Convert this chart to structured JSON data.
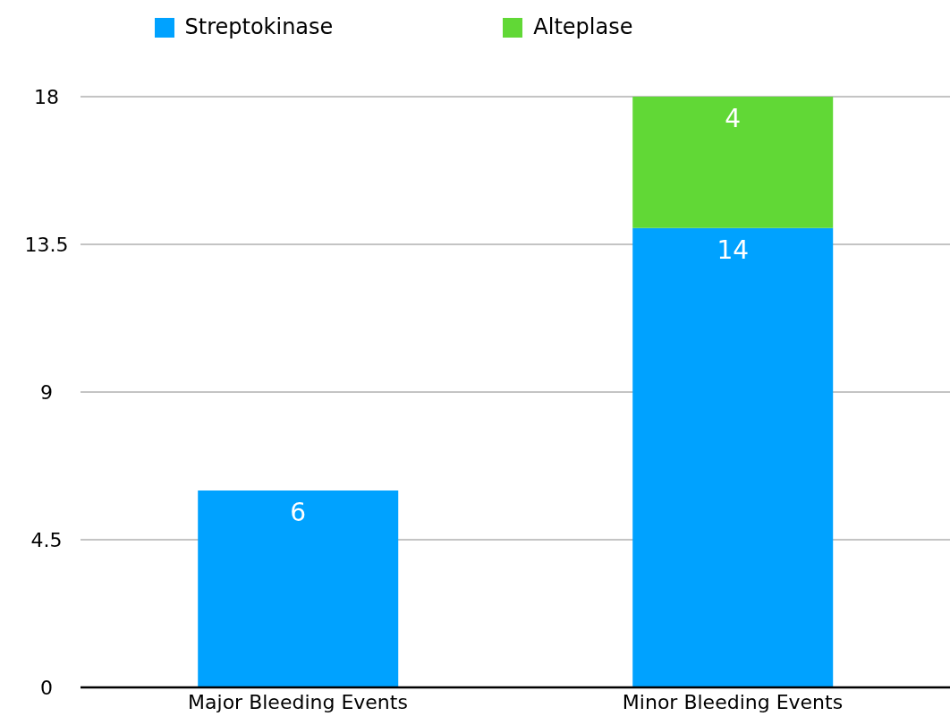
{
  "chart_data": {
    "type": "bar",
    "stacked": true,
    "categories": [
      "Major Bleeding Events",
      "Minor Bleeding Events"
    ],
    "series": [
      {
        "name": "Streptokinase",
        "color": "#00a2ff",
        "values": [
          6,
          14
        ]
      },
      {
        "name": "Alteplase",
        "color": "#61d836",
        "values": [
          null,
          4
        ]
      }
    ],
    "ylim": [
      0,
      18
    ],
    "yticks": [
      0,
      4.5,
      9,
      13.5,
      18
    ],
    "grid": "y",
    "legend": "top",
    "data_labels": true
  }
}
